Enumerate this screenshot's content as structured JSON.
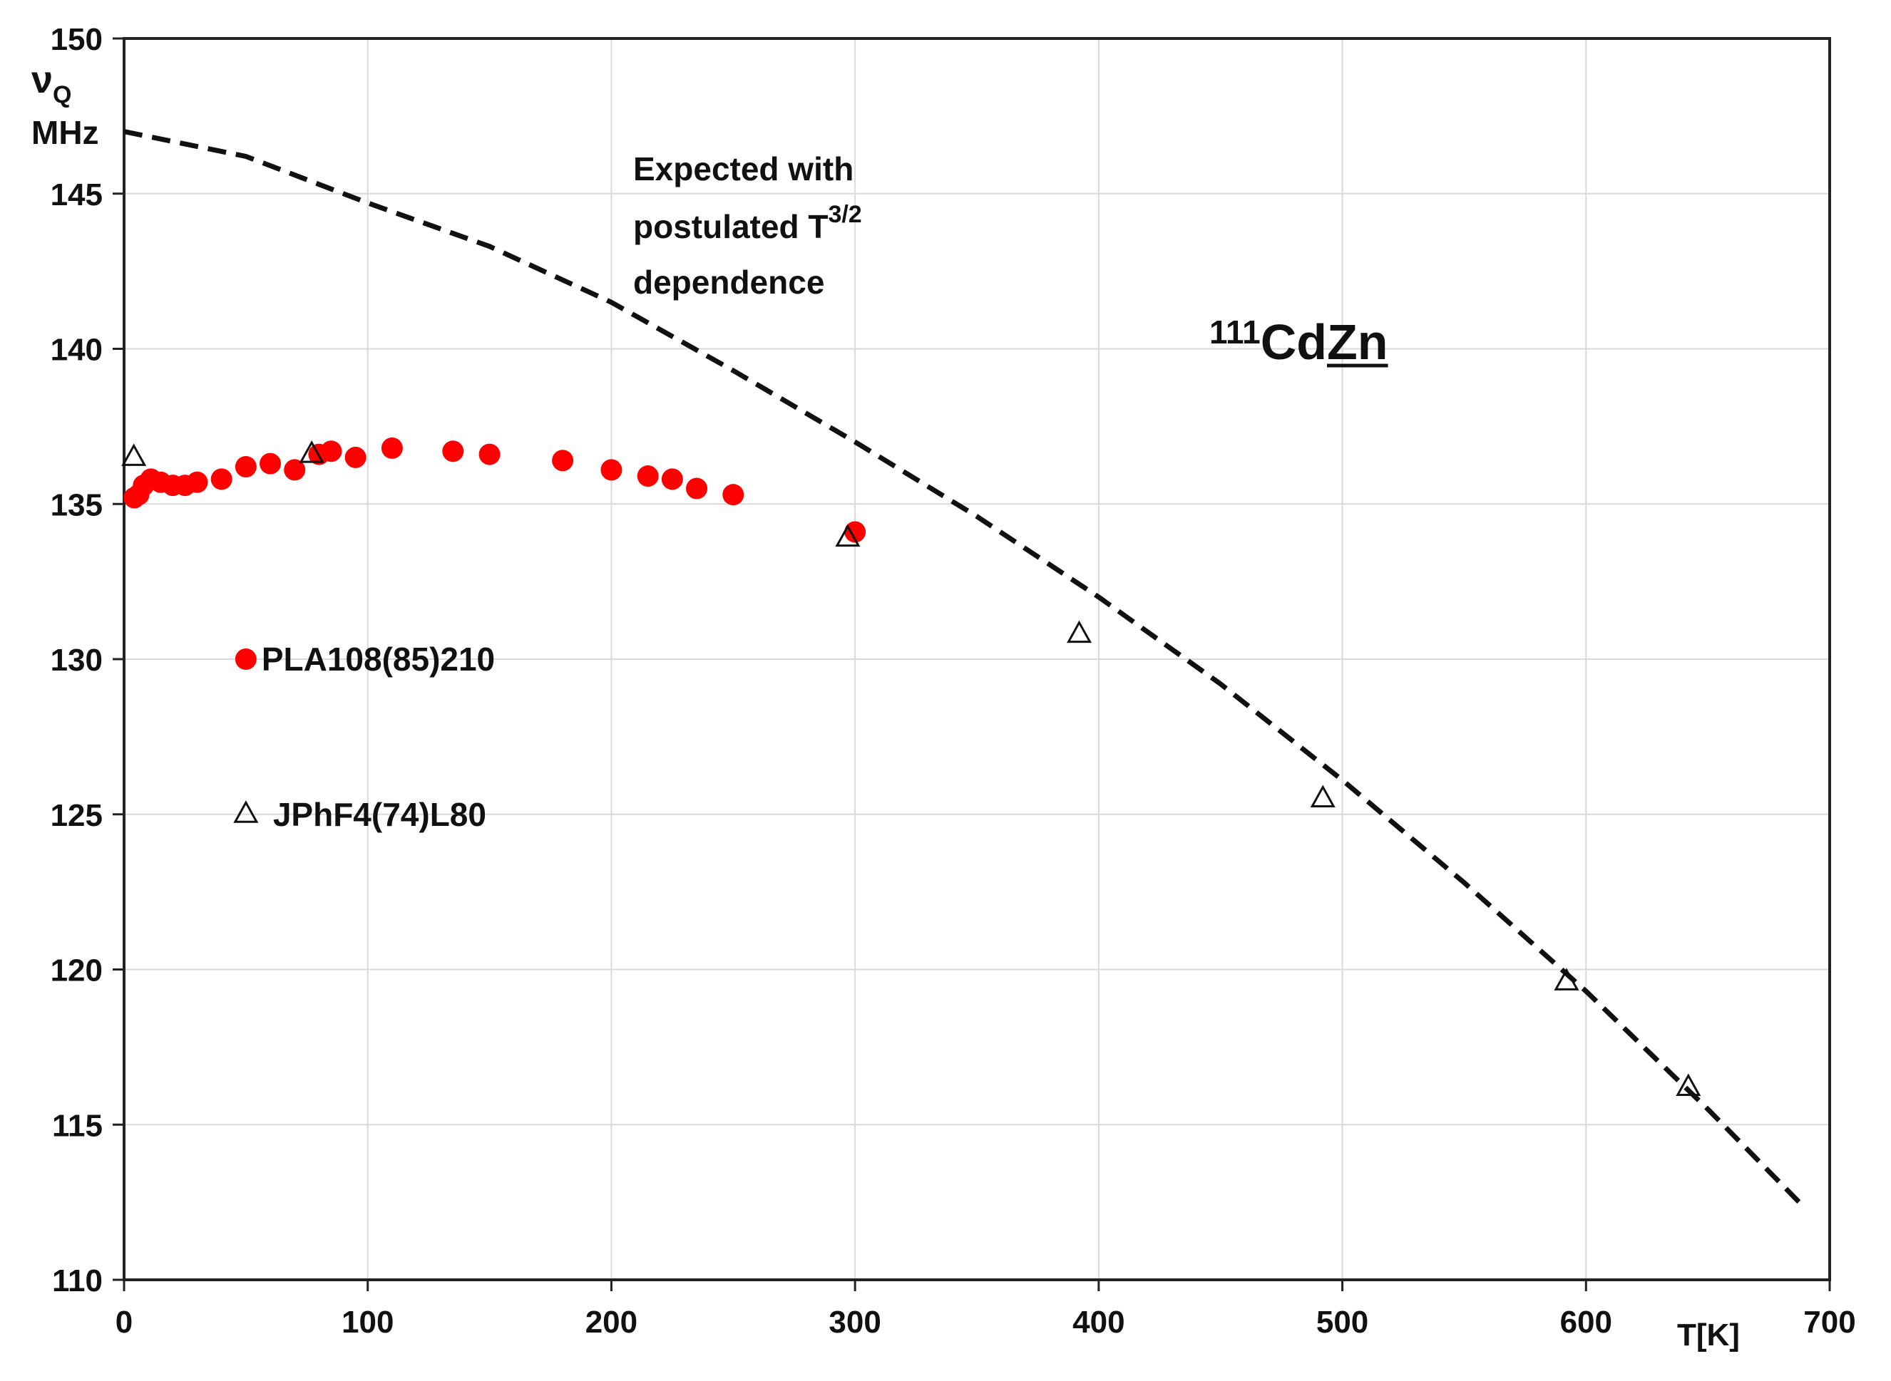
{
  "chart_data": {
    "type": "scatter",
    "title": "111CdZn",
    "title_parts": {
      "isotope": "111",
      "element1": "Cd",
      "element2": "Zn"
    },
    "xlabel": "T[K]",
    "ylabel_symbol": "νQ",
    "ylabel_parts": {
      "greek": "ν",
      "sub": "Q",
      "unit": "MHz"
    },
    "xlim": [
      0,
      700
    ],
    "ylim": [
      110,
      150
    ],
    "xticks": [
      0,
      100,
      200,
      300,
      400,
      500,
      600,
      700
    ],
    "yticks": [
      110,
      115,
      120,
      125,
      130,
      135,
      140,
      145,
      150
    ],
    "grid": true,
    "annotation": {
      "line1": "Expected with",
      "line2": "postulated T",
      "line2_sup": "3/2",
      "line3": "dependence"
    },
    "colors": {
      "series1": "#ff0000",
      "series2": "#111111",
      "curve": "#111111",
      "grid": "#d9d9d9",
      "axis": "#222222"
    },
    "series": [
      {
        "name": "PLA108(85)210",
        "marker": "circle",
        "color": "#ff0000",
        "x": [
          4.2,
          6,
          8,
          11,
          15,
          20,
          25,
          30,
          40,
          50,
          60,
          70,
          80,
          85,
          95,
          110,
          135,
          150,
          180,
          200,
          215,
          225,
          235,
          250,
          300
        ],
        "y": [
          135.2,
          135.3,
          135.6,
          135.8,
          135.7,
          135.6,
          135.6,
          135.7,
          135.8,
          136.2,
          136.3,
          136.1,
          136.6,
          136.7,
          136.5,
          136.8,
          136.7,
          136.6,
          136.4,
          136.1,
          135.9,
          135.8,
          135.5,
          135.3,
          134.1
        ]
      },
      {
        "name": "JPhF4(74)L80",
        "marker": "triangle",
        "color": "#111111",
        "x": [
          4,
          77,
          297,
          392,
          492,
          592,
          642
        ],
        "y": [
          136.5,
          136.6,
          133.9,
          130.8,
          125.5,
          119.6,
          116.2
        ]
      },
      {
        "name": "Expected with postulated T3/2 dependence",
        "type": "line",
        "style": "dashed",
        "x": [
          0,
          50,
          100,
          150,
          200,
          250,
          300,
          350,
          400,
          450,
          500,
          550,
          600,
          650,
          690
        ],
        "y": [
          147.0,
          146.2,
          144.7,
          143.3,
          141.5,
          139.3,
          137.0,
          134.6,
          132.0,
          129.2,
          126.1,
          122.8,
          119.3,
          115.5,
          112.3
        ]
      }
    ],
    "legend_samples": [
      {
        "series": "PLA108(85)210",
        "x": 50,
        "y": 130
      },
      {
        "series": "JPhF4(74)L80",
        "x": 50,
        "y": 125
      }
    ]
  }
}
